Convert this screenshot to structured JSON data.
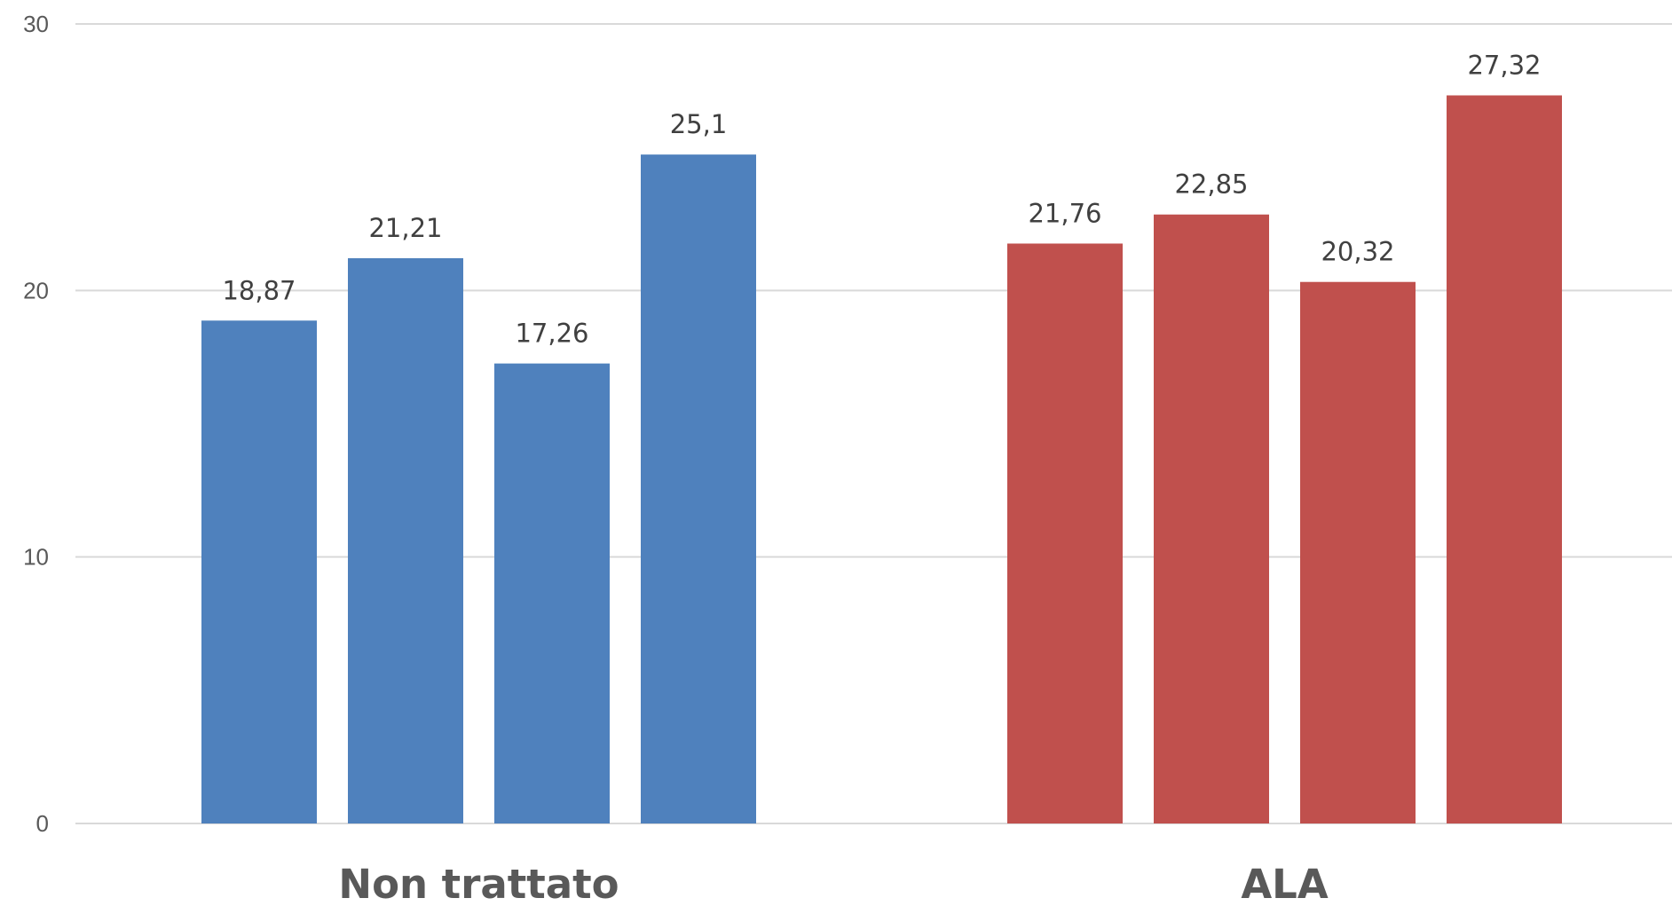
{
  "chart_data": {
    "type": "bar",
    "ylim": [
      0,
      30
    ],
    "yticks": [
      0,
      10,
      20,
      30
    ],
    "grid": true,
    "categories": [
      "Non trattato",
      "ALA"
    ],
    "groups": [
      {
        "category": "Non trattato",
        "color": "#4f81bd",
        "values": [
          18.87,
          21.21,
          17.26,
          25.1
        ],
        "labels": [
          "18,87",
          "21,21",
          "17,26",
          "25,1"
        ]
      },
      {
        "category": "ALA",
        "color": "#c0504d",
        "values": [
          21.76,
          22.85,
          20.32,
          27.32
        ],
        "labels": [
          "21,76",
          "22,85",
          "20,32",
          "27,32"
        ]
      }
    ]
  }
}
